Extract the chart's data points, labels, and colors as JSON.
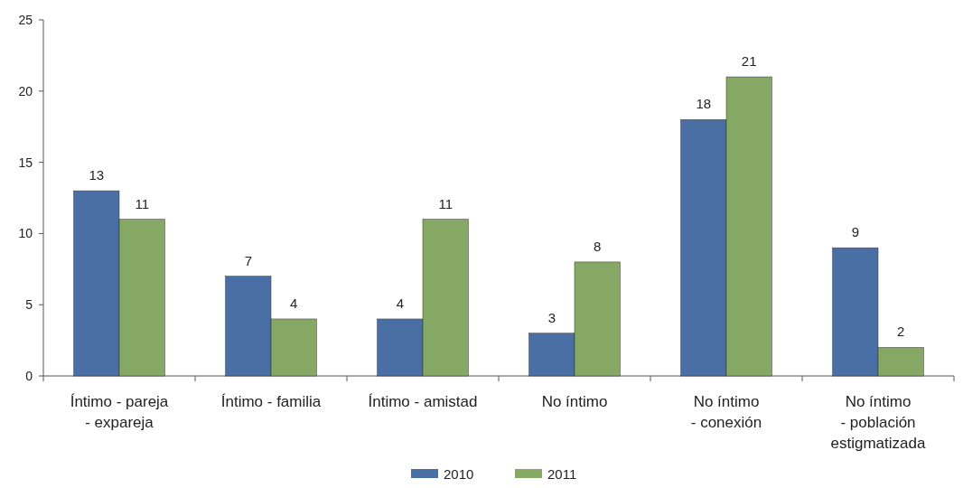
{
  "chart_data": {
    "type": "bar",
    "categories": [
      "Íntimo - pareja - expareja",
      "Íntimo - familia",
      "Íntimo - amistad",
      "No íntimo",
      "No íntimo - conexión",
      "No íntimo - población estigmatizada"
    ],
    "series": [
      {
        "name": "2010",
        "color": "#4a6fa5",
        "values": [
          13,
          7,
          4,
          3,
          18,
          9
        ]
      },
      {
        "name": "2011",
        "color": "#86a865",
        "values": [
          11,
          4,
          11,
          8,
          21,
          2
        ]
      }
    ],
    "ylim": [
      0,
      25
    ],
    "yticks": [
      0,
      5,
      10,
      15,
      20,
      25
    ],
    "grid": false,
    "legend": "bottom",
    "data_labels": true
  }
}
